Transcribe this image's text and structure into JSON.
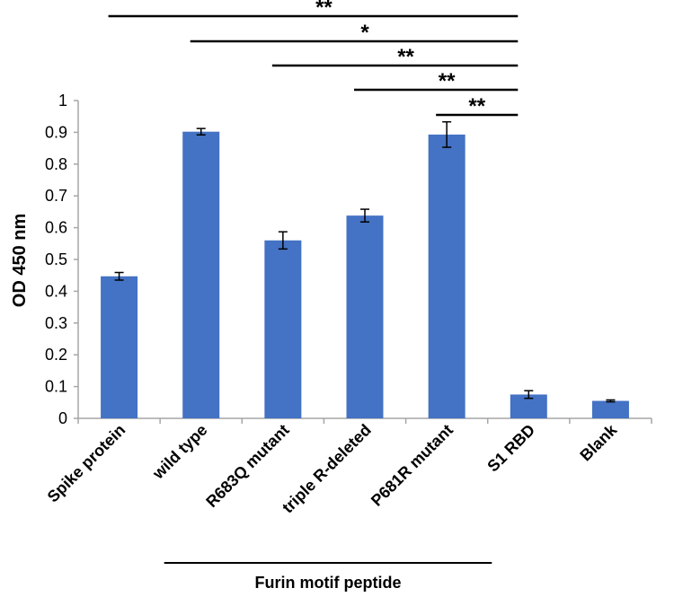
{
  "chart_data": {
    "type": "bar",
    "title": "",
    "xlabel": "",
    "ylabel": "OD 450 nm",
    "ylim": [
      0,
      1
    ],
    "yticks": [
      "0",
      "0.1",
      "0.2",
      "0.3",
      "0.4",
      "0.5",
      "0.6",
      "0.7",
      "0.8",
      "0.9",
      "1"
    ],
    "categories": [
      "Spike protein",
      "wild type",
      "R683Q mutant",
      "triple R-deleted",
      "P681R mutant",
      "S1 RBD",
      "Blank"
    ],
    "values": [
      0.447,
      0.902,
      0.56,
      0.638,
      0.893,
      0.075,
      0.055
    ],
    "errors": [
      0.012,
      0.01,
      0.027,
      0.02,
      0.04,
      0.012,
      0.003
    ],
    "bar_color": "#4472C4",
    "grid": false,
    "legend": "none",
    "group_label": "Furin motif peptide",
    "group_categories": [
      1,
      4
    ],
    "significance": [
      {
        "from": 0,
        "to": 5,
        "label": "**"
      },
      {
        "from": 1,
        "to": 5,
        "label": "*"
      },
      {
        "from": 2,
        "to": 5,
        "label": "**"
      },
      {
        "from": 3,
        "to": 5,
        "label": "**"
      },
      {
        "from": 4,
        "to": 5,
        "label": "**"
      }
    ]
  }
}
